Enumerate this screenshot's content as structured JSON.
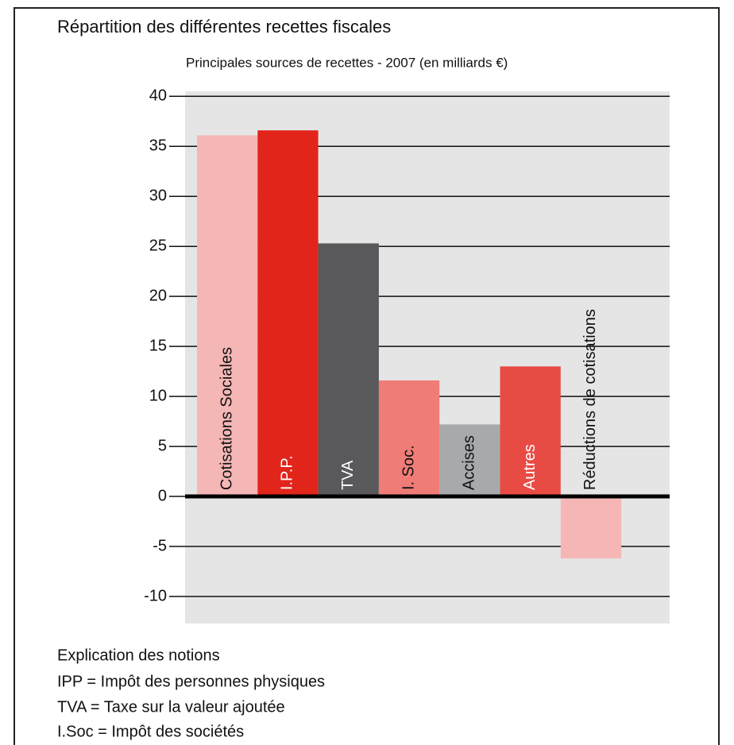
{
  "chart_data": {
    "type": "bar",
    "title": "Répartition des différentes recettes fiscales",
    "subtitle": "Principales sources de recettes - 2007 (en milliards €)",
    "categories": [
      "Cotisations Sociales",
      "I.P.P.",
      "TVA",
      "I. Soc.",
      "Accises",
      "Autres",
      "Réductions de cotisations"
    ],
    "values": [
      36.1,
      36.6,
      25.3,
      11.6,
      7.2,
      13.0,
      -6.2
    ],
    "colors": [
      "#f5b6b6",
      "#e1251b",
      "#59595b",
      "#ef7c77",
      "#a8a9ab",
      "#e84b44",
      "#f5b6b6"
    ],
    "ylim": [
      -12.7,
      40.5
    ],
    "yticks": [
      {
        "value": -10,
        "label": "-10"
      },
      {
        "value": -5,
        "label": "-5"
      },
      0,
      5,
      10,
      15,
      20,
      25,
      30,
      35,
      40
    ],
    "grid": true,
    "notes": {
      "title": "Explication des notions",
      "lines": [
        "IPP = Impôt des personnes physiques",
        "TVA = Taxe sur la valeur ajoutée",
        "I.Soc = Impôt des sociétés"
      ]
    }
  }
}
